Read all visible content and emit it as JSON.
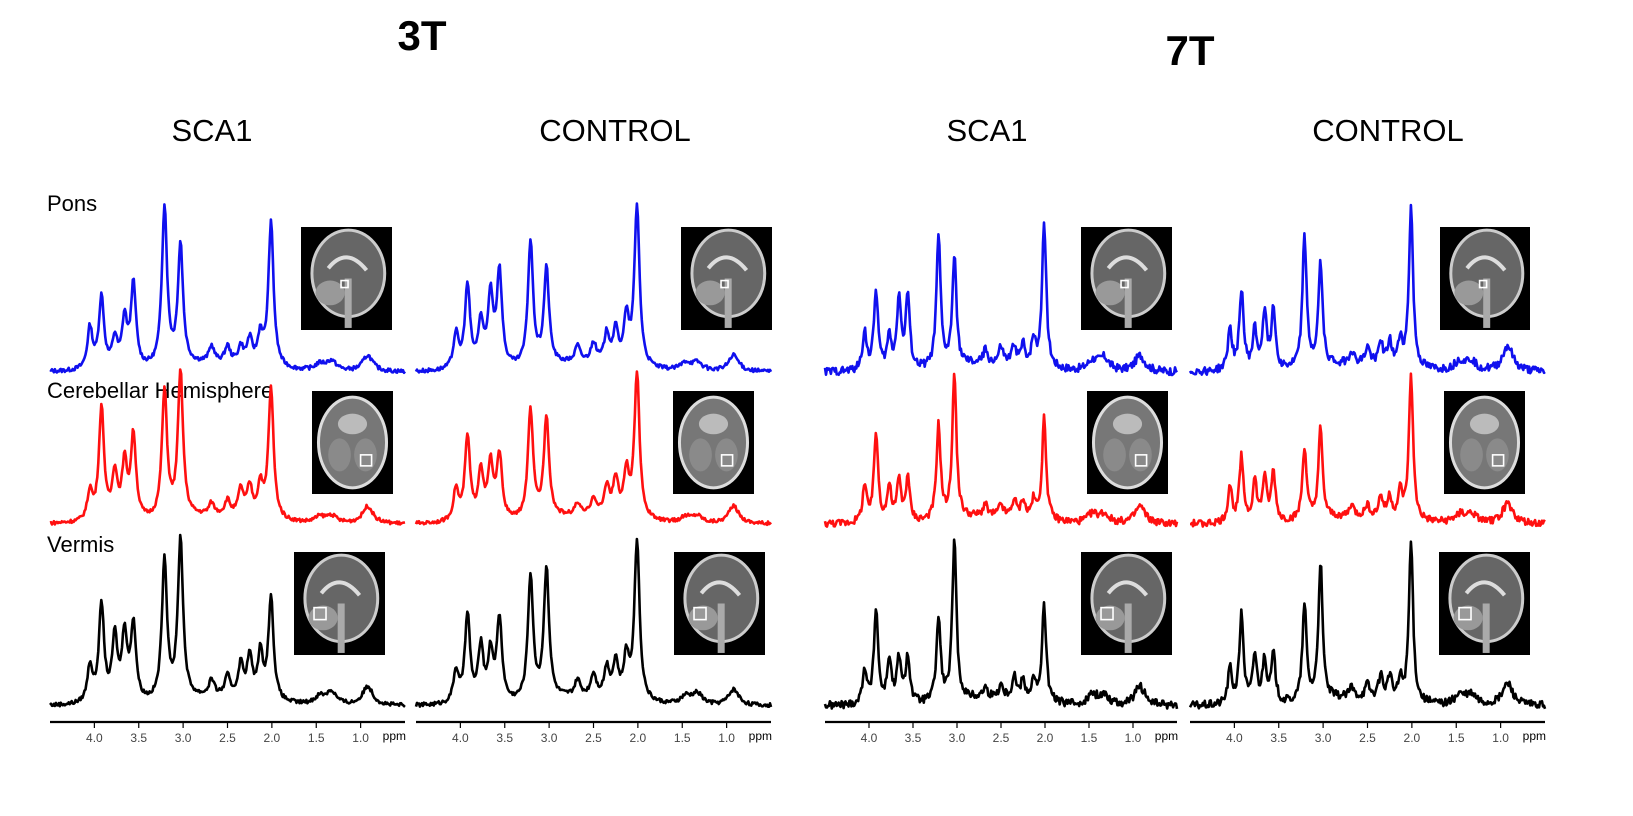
{
  "chart_data": {
    "type": "line",
    "title": "",
    "field_strengths": [
      "3T",
      "7T"
    ],
    "columns": [
      "SCA1",
      "CONTROL",
      "SCA1",
      "CONTROL"
    ],
    "regions": [
      "Pons",
      "Cerebellar Hemisphere",
      "Vermis"
    ],
    "series_colors": {
      "Pons": "#1010ee",
      "Cerebellar Hemisphere": "#ff1010",
      "Vermis": "#000000"
    },
    "xlabel": "ppm",
    "xlim": [
      4.5,
      0.5
    ],
    "x_ticks": [
      "4.0",
      "3.5",
      "3.0",
      "2.5",
      "2.0",
      "1.5",
      "1.0"
    ],
    "peaks_ppm": [
      4.05,
      3.92,
      3.77,
      3.66,
      3.56,
      3.21,
      3.03,
      2.68,
      2.5,
      2.35,
      2.25,
      2.13,
      2.01,
      1.46,
      1.33,
      0.92
    ],
    "panels": [
      {
        "field": "3T",
        "group": "SCA1",
        "region": "Pons",
        "heights": [
          0.26,
          0.45,
          0.18,
          0.3,
          0.52,
          1.0,
          0.75,
          0.1,
          0.1,
          0.1,
          0.15,
          0.18,
          0.9,
          0.04,
          0.06,
          0.1
        ]
      },
      {
        "field": "3T",
        "group": "SCA1",
        "region": "Cerebellar Hemisphere",
        "heights": [
          0.2,
          0.78,
          0.32,
          0.38,
          0.58,
          0.88,
          1.0,
          0.08,
          0.1,
          0.18,
          0.2,
          0.22,
          0.9,
          0.04,
          0.05,
          0.12
        ]
      },
      {
        "field": "3T",
        "group": "SCA1",
        "region": "Vermis",
        "heights": [
          0.23,
          0.61,
          0.4,
          0.42,
          0.48,
          0.87,
          1.0,
          0.1,
          0.12,
          0.2,
          0.25,
          0.28,
          0.64,
          0.05,
          0.08,
          0.12
        ]
      },
      {
        "field": "3T",
        "group": "CONTROL",
        "region": "Pons",
        "heights": [
          0.22,
          0.52,
          0.28,
          0.45,
          0.6,
          0.78,
          0.6,
          0.1,
          0.12,
          0.18,
          0.2,
          0.28,
          1.0,
          0.05,
          0.05,
          0.1
        ]
      },
      {
        "field": "3T",
        "group": "CONTROL",
        "region": "Cerebellar Hemisphere",
        "heights": [
          0.22,
          0.58,
          0.34,
          0.38,
          0.45,
          0.75,
          0.7,
          0.08,
          0.12,
          0.2,
          0.25,
          0.3,
          1.0,
          0.04,
          0.05,
          0.12
        ]
      },
      {
        "field": "3T",
        "group": "CONTROL",
        "region": "Vermis",
        "heights": [
          0.2,
          0.55,
          0.34,
          0.3,
          0.52,
          0.78,
          0.82,
          0.1,
          0.14,
          0.18,
          0.22,
          0.25,
          1.0,
          0.05,
          0.07,
          0.1
        ]
      },
      {
        "field": "7T",
        "group": "SCA1",
        "region": "Pons",
        "heights": [
          0.24,
          0.5,
          0.2,
          0.45,
          0.46,
          0.82,
          0.68,
          0.08,
          0.1,
          0.12,
          0.12,
          0.16,
          0.92,
          0.06,
          0.08,
          0.1
        ]
      },
      {
        "field": "7T",
        "group": "SCA1",
        "region": "Cerebellar Hemisphere",
        "heights": [
          0.25,
          0.62,
          0.24,
          0.28,
          0.3,
          0.65,
          1.0,
          0.08,
          0.08,
          0.12,
          0.12,
          0.12,
          0.7,
          0.06,
          0.06,
          0.12
        ]
      },
      {
        "field": "7T",
        "group": "SCA1",
        "region": "Vermis",
        "heights": [
          0.22,
          0.6,
          0.28,
          0.28,
          0.3,
          0.52,
          1.0,
          0.06,
          0.08,
          0.14,
          0.12,
          0.12,
          0.6,
          0.06,
          0.06,
          0.12
        ]
      },
      {
        "field": "7T",
        "group": "CONTROL",
        "region": "Pons",
        "heights": [
          0.26,
          0.5,
          0.24,
          0.36,
          0.38,
          0.82,
          0.64,
          0.08,
          0.1,
          0.14,
          0.14,
          0.16,
          1.0,
          0.06,
          0.06,
          0.16
        ]
      },
      {
        "field": "7T",
        "group": "CONTROL",
        "region": "Cerebellar Hemisphere",
        "heights": [
          0.25,
          0.45,
          0.28,
          0.3,
          0.34,
          0.5,
          0.62,
          0.08,
          0.08,
          0.14,
          0.14,
          0.18,
          1.0,
          0.06,
          0.06,
          0.14
        ]
      },
      {
        "field": "7T",
        "group": "CONTROL",
        "region": "Vermis",
        "heights": [
          0.22,
          0.56,
          0.3,
          0.28,
          0.3,
          0.6,
          0.86,
          0.06,
          0.08,
          0.14,
          0.14,
          0.12,
          1.0,
          0.06,
          0.06,
          0.14
        ]
      }
    ],
    "inset_images": [
      {
        "region": "Pons",
        "view": "sagittal MRI",
        "voi": "small box on pons"
      },
      {
        "region": "Cerebellar Hemisphere",
        "view": "axial MRI",
        "voi": "box on cerebellar hemisphere"
      },
      {
        "region": "Vermis",
        "view": "sagittal MRI",
        "voi": "box on vermis"
      }
    ]
  }
}
